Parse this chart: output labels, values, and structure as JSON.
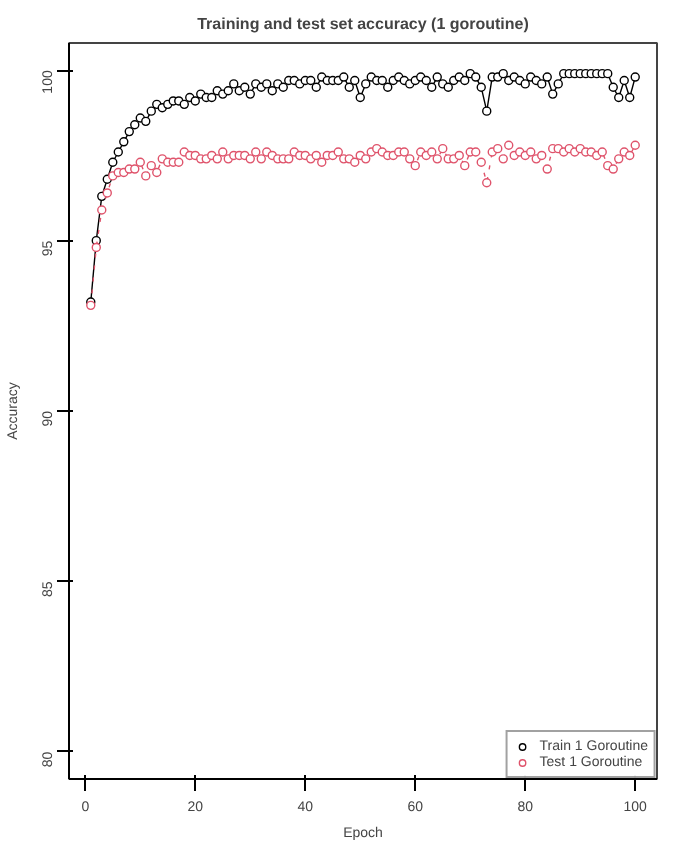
{
  "chart_data": {
    "type": "line",
    "title": "Training and test set accuracy (1 goroutine)",
    "xlabel": "Epoch",
    "ylabel": "Accuracy",
    "xlim": [
      -2.96,
      103.96
    ],
    "ylim": [
      79.2,
      100.8
    ],
    "xticks": [
      0,
      20,
      40,
      60,
      80,
      100
    ],
    "yticks": [
      80,
      85,
      90,
      95,
      100
    ],
    "x": [
      1,
      2,
      3,
      4,
      5,
      6,
      7,
      8,
      9,
      10,
      11,
      12,
      13,
      14,
      15,
      16,
      17,
      18,
      19,
      20,
      21,
      22,
      23,
      24,
      25,
      26,
      27,
      28,
      29,
      30,
      31,
      32,
      33,
      34,
      35,
      36,
      37,
      38,
      39,
      40,
      41,
      42,
      43,
      44,
      45,
      46,
      47,
      48,
      49,
      50,
      51,
      52,
      53,
      54,
      55,
      56,
      57,
      58,
      59,
      60,
      61,
      62,
      63,
      64,
      65,
      66,
      67,
      68,
      69,
      70,
      71,
      72,
      73,
      74,
      75,
      76,
      77,
      78,
      79,
      80,
      81,
      82,
      83,
      84,
      85,
      86,
      87,
      88,
      89,
      90,
      91,
      92,
      93,
      94,
      95,
      96,
      97,
      98,
      99,
      100
    ],
    "series": [
      {
        "name": "Train 1 Goroutine",
        "color": "#000000",
        "line_style": "solid",
        "values": [
          93.2,
          95.0,
          96.3,
          96.8,
          97.3,
          97.6,
          97.9,
          98.2,
          98.4,
          98.6,
          98.5,
          98.8,
          99.0,
          98.9,
          99.0,
          99.1,
          99.1,
          99.0,
          99.2,
          99.1,
          99.3,
          99.2,
          99.2,
          99.4,
          99.3,
          99.4,
          99.6,
          99.4,
          99.5,
          99.3,
          99.6,
          99.5,
          99.6,
          99.4,
          99.6,
          99.5,
          99.7,
          99.7,
          99.6,
          99.7,
          99.7,
          99.5,
          99.8,
          99.7,
          99.7,
          99.7,
          99.8,
          99.5,
          99.7,
          99.2,
          99.6,
          99.8,
          99.7,
          99.7,
          99.5,
          99.7,
          99.8,
          99.7,
          99.6,
          99.7,
          99.8,
          99.7,
          99.5,
          99.8,
          99.6,
          99.5,
          99.7,
          99.8,
          99.7,
          99.9,
          99.8,
          99.5,
          98.8,
          99.8,
          99.8,
          99.9,
          99.7,
          99.8,
          99.7,
          99.6,
          99.8,
          99.7,
          99.6,
          99.8,
          99.3,
          99.6,
          99.9,
          99.9,
          99.9,
          99.9,
          99.9,
          99.9,
          99.9,
          99.9,
          99.9,
          99.5,
          99.2,
          99.7,
          99.2,
          99.8
        ]
      },
      {
        "name": "Test 1 Goroutine",
        "color": "#df536b",
        "line_style": "dotted",
        "values": [
          93.1,
          94.8,
          95.9,
          96.4,
          96.9,
          97.0,
          97.0,
          97.1,
          97.1,
          97.3,
          96.9,
          97.2,
          97.0,
          97.4,
          97.3,
          97.3,
          97.3,
          97.6,
          97.5,
          97.5,
          97.4,
          97.4,
          97.5,
          97.4,
          97.6,
          97.4,
          97.5,
          97.5,
          97.5,
          97.4,
          97.6,
          97.4,
          97.6,
          97.5,
          97.4,
          97.4,
          97.4,
          97.6,
          97.5,
          97.5,
          97.4,
          97.5,
          97.3,
          97.5,
          97.5,
          97.6,
          97.4,
          97.4,
          97.3,
          97.5,
          97.4,
          97.6,
          97.7,
          97.6,
          97.5,
          97.5,
          97.6,
          97.6,
          97.4,
          97.2,
          97.6,
          97.5,
          97.6,
          97.4,
          97.7,
          97.4,
          97.4,
          97.5,
          97.2,
          97.6,
          97.6,
          97.3,
          96.7,
          97.6,
          97.7,
          97.4,
          97.8,
          97.5,
          97.6,
          97.5,
          97.6,
          97.4,
          97.5,
          97.1,
          97.7,
          97.7,
          97.6,
          97.7,
          97.6,
          97.7,
          97.6,
          97.6,
          97.5,
          97.6,
          97.2,
          97.1,
          97.4,
          97.6,
          97.5,
          97.8
        ]
      }
    ],
    "marker": "circle",
    "grid": false,
    "legend": "bottom right"
  }
}
